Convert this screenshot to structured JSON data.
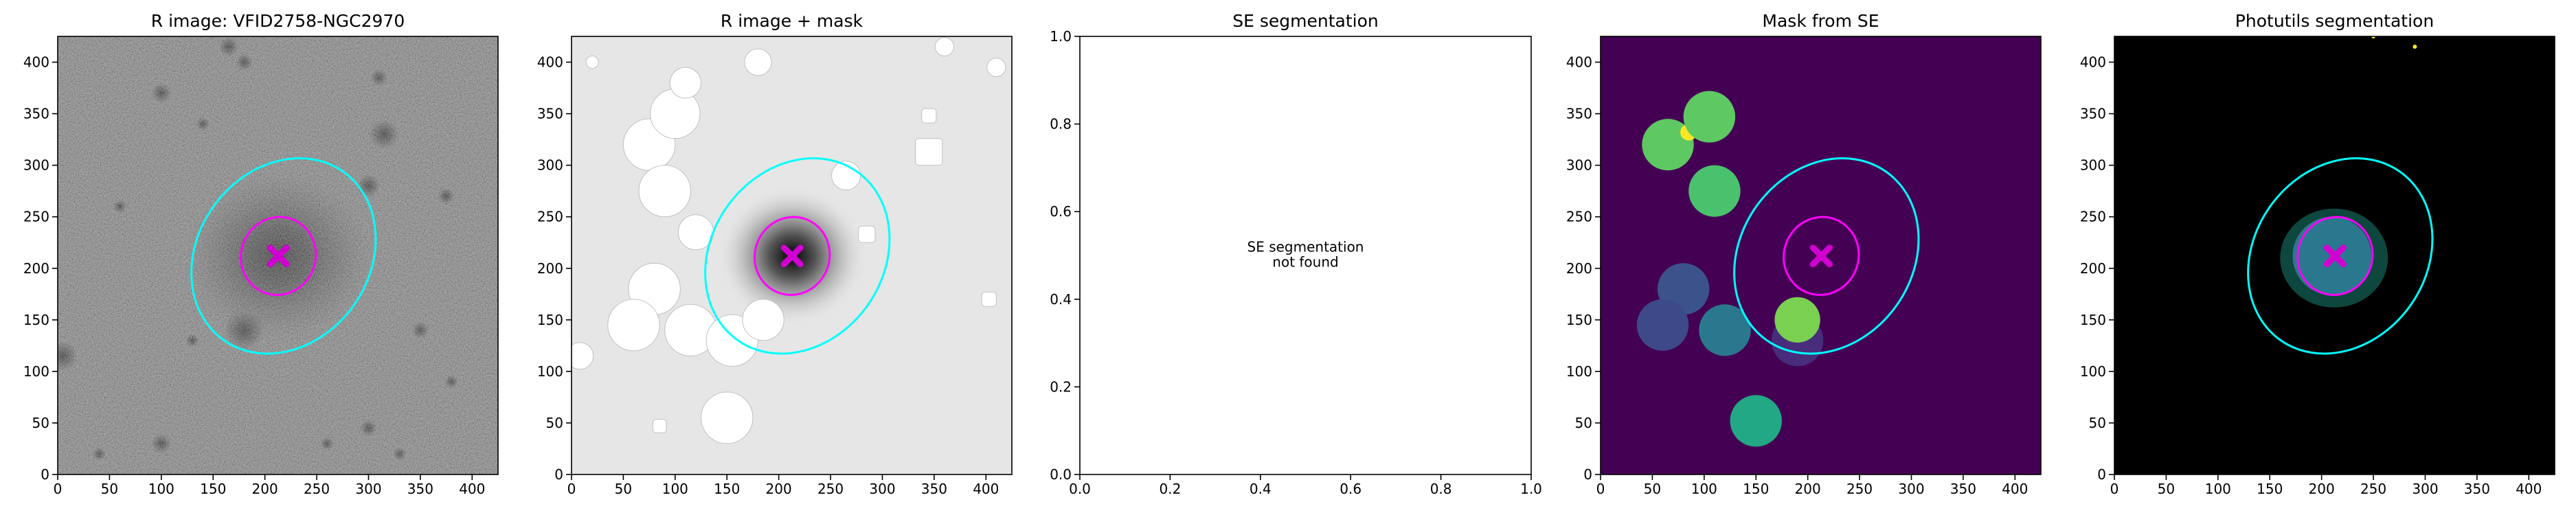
{
  "chart_data": [
    {
      "type": "image",
      "title": "R image: VFID2758-NGC2970",
      "xlim": [
        0,
        425
      ],
      "ylim": [
        0,
        425
      ],
      "xticks": [
        0,
        50,
        100,
        150,
        200,
        250,
        300,
        350,
        400
      ],
      "yticks": [
        0,
        50,
        100,
        150,
        200,
        250,
        300,
        350,
        400
      ]
    },
    {
      "type": "image",
      "title": "R image + mask",
      "xlim": [
        0,
        425
      ],
      "ylim": [
        0,
        425
      ],
      "xticks": [
        0,
        50,
        100,
        150,
        200,
        250,
        300,
        350,
        400
      ],
      "yticks": [
        0,
        50,
        100,
        150,
        200,
        250,
        300,
        350,
        400
      ]
    },
    {
      "type": "empty",
      "title": "SE segmentation",
      "annotation": [
        "SE segmentation",
        "not found"
      ],
      "xlim": [
        0,
        1
      ],
      "ylim": [
        0,
        1
      ],
      "xticks": [
        {
          "value": 0,
          "label": "0.0"
        },
        0.2,
        0.4,
        0.6,
        0.8,
        {
          "value": 1,
          "label": "1.0"
        }
      ],
      "yticks": [
        {
          "value": 0,
          "label": "0.0"
        },
        0.2,
        0.4,
        0.6,
        0.8,
        {
          "value": 1,
          "label": "1.0"
        }
      ]
    },
    {
      "type": "image",
      "title": "Mask from SE",
      "xlim": [
        0,
        425
      ],
      "ylim": [
        0,
        425
      ],
      "xticks": [
        0,
        50,
        100,
        150,
        200,
        250,
        300,
        350,
        400
      ],
      "yticks": [
        0,
        50,
        100,
        150,
        200,
        250,
        300,
        350,
        400
      ]
    },
    {
      "type": "image",
      "title": "Photutils segmentation",
      "xlim": [
        0,
        425
      ],
      "ylim": [
        0,
        425
      ],
      "xticks": [
        0,
        50,
        100,
        150,
        200,
        250,
        300,
        350,
        400
      ],
      "yticks": [
        0,
        50,
        100,
        150,
        200,
        250,
        300,
        350,
        400
      ]
    }
  ]
}
